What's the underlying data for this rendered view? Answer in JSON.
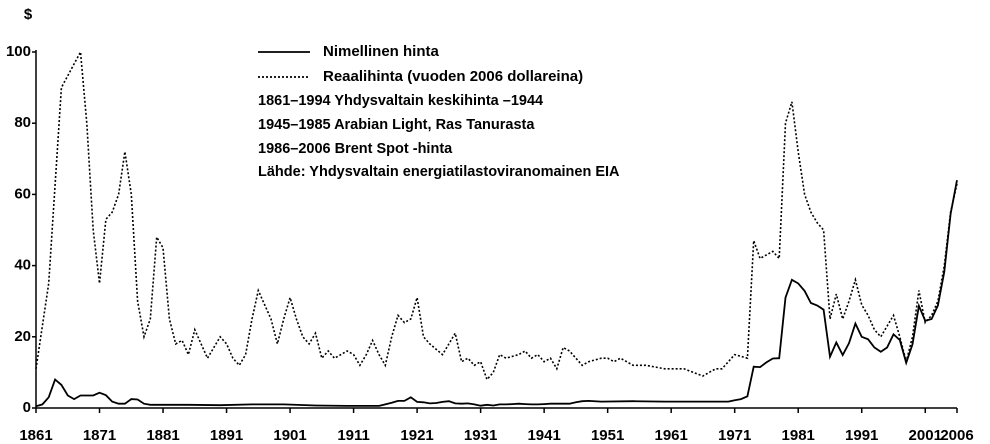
{
  "chart_data": {
    "type": "line",
    "ylabel": "$",
    "xlim": [
      1861,
      2006
    ],
    "ylim": [
      0,
      100
    ],
    "xticks": [
      1861,
      1871,
      1881,
      1891,
      1901,
      1911,
      1921,
      1931,
      1941,
      1951,
      1961,
      1971,
      1981,
      1991,
      2001,
      2006
    ],
    "yticks": [
      0,
      20,
      40,
      60,
      80,
      100
    ],
    "grid": false,
    "notes": [
      "1861–1994 Yhdysvaltain keskihinta –1944",
      "1945–1985 Arabian Light, Ras Tanurasta",
      "1986–2006 Brent Spot -hinta",
      "Lähde: Yhdysvaltain energiatilastoviranomainen EIA"
    ],
    "series": [
      {
        "name": "Nimellinen hinta",
        "color": "#000000",
        "dash": "solid",
        "x": [
          1861,
          1862,
          1863,
          1864,
          1865,
          1866,
          1867,
          1868,
          1869,
          1870,
          1871,
          1872,
          1873,
          1874,
          1875,
          1876,
          1877,
          1878,
          1879,
          1880,
          1885,
          1890,
          1895,
          1900,
          1905,
          1910,
          1915,
          1917,
          1918,
          1919,
          1920,
          1921,
          1922,
          1923,
          1924,
          1925,
          1926,
          1927,
          1928,
          1929,
          1930,
          1931,
          1932,
          1933,
          1934,
          1935,
          1936,
          1937,
          1938,
          1939,
          1940,
          1941,
          1942,
          1945,
          1946,
          1947,
          1948,
          1950,
          1955,
          1960,
          1965,
          1970,
          1971,
          1972,
          1973,
          1974,
          1975,
          1976,
          1977,
          1978,
          1979,
          1980,
          1981,
          1982,
          1983,
          1984,
          1985,
          1986,
          1987,
          1988,
          1989,
          1990,
          1991,
          1992,
          1993,
          1994,
          1995,
          1996,
          1997,
          1998,
          1999,
          2000,
          2001,
          2002,
          2003,
          2004,
          2005,
          2006
        ],
        "values": [
          0.5,
          1,
          3,
          8,
          6.5,
          3.5,
          2.5,
          3.5,
          3.5,
          3.5,
          4.3,
          3.6,
          1.8,
          1.2,
          1.2,
          2.5,
          2.4,
          1.2,
          0.9,
          0.9,
          0.9,
          0.8,
          1,
          1,
          0.7,
          0.6,
          0.6,
          1.5,
          2,
          2,
          3,
          1.7,
          1.6,
          1.3,
          1.4,
          1.7,
          1.9,
          1.3,
          1.2,
          1.3,
          1,
          0.65,
          0.9,
          0.7,
          1,
          1,
          1.1,
          1.2,
          1.1,
          1,
          1,
          1.1,
          1.2,
          1.2,
          1.6,
          1.9,
          2,
          1.8,
          1.9,
          1.8,
          1.8,
          1.8,
          2.2,
          2.5,
          3.3,
          11.6,
          11.5,
          12.8,
          13.9,
          14,
          31,
          36,
          35,
          32.9,
          29.5,
          28.8,
          27.6,
          14.4,
          18.4,
          14.9,
          18.2,
          23.7,
          20,
          19.3,
          17,
          15.8,
          17,
          20.7,
          19.1,
          12.7,
          17.9,
          28.7,
          24.5,
          25,
          28.8,
          38.3,
          54.5,
          64
        ]
      },
      {
        "name": "Reaalihinta (vuoden 2006 dollareina)",
        "color": "#000000",
        "dash": "dotted",
        "x": [
          1861,
          1863,
          1865,
          1868,
          1869,
          1870,
          1871,
          1872,
          1873,
          1874,
          1875,
          1876,
          1877,
          1878,
          1879,
          1880,
          1881,
          1882,
          1883,
          1884,
          1885,
          1886,
          1887,
          1888,
          1890,
          1891,
          1892,
          1893,
          1894,
          1895,
          1896,
          1898,
          1899,
          1900,
          1901,
          1902,
          1903,
          1904,
          1905,
          1906,
          1907,
          1908,
          1910,
          1911,
          1912,
          1913,
          1914,
          1915,
          1916,
          1917,
          1918,
          1919,
          1920,
          1921,
          1922,
          1923,
          1925,
          1926,
          1927,
          1928,
          1929,
          1930,
          1931,
          1932,
          1933,
          1934,
          1935,
          1937,
          1938,
          1939,
          1940,
          1941,
          1942,
          1943,
          1944,
          1945,
          1946,
          1947,
          1948,
          1950,
          1951,
          1952,
          1953,
          1954,
          1955,
          1957,
          1960,
          1963,
          1966,
          1968,
          1969,
          1971,
          1973,
          1974,
          1975,
          1976,
          1977,
          1978,
          1979,
          1980,
          1981,
          1982,
          1983,
          1984,
          1985,
          1986,
          1987,
          1988,
          1989,
          1990,
          1991,
          1992,
          1993,
          1994,
          1995,
          1996,
          1997,
          1998,
          1999,
          2000,
          2001,
          2002,
          2003,
          2004,
          2005,
          2006
        ],
        "values": [
          11,
          35,
          90,
          100,
          80,
          50,
          35,
          53,
          55,
          60,
          72,
          60,
          30,
          20,
          25,
          48,
          45,
          25,
          18,
          19,
          15,
          22,
          18,
          14,
          20,
          18,
          14,
          12,
          15,
          25,
          33,
          25,
          18,
          25,
          31,
          25,
          20,
          18,
          21,
          14,
          16,
          14,
          16,
          15,
          12,
          15,
          19,
          15,
          12,
          20,
          26,
          24,
          25,
          31,
          20,
          18,
          15,
          18,
          21,
          13,
          14,
          12,
          13,
          8,
          10,
          15,
          14,
          15,
          16,
          14,
          15,
          13,
          14,
          11,
          17,
          16,
          14,
          12,
          13,
          14,
          14,
          13,
          14,
          13,
          12,
          12,
          11,
          11,
          9,
          11,
          11,
          15,
          14,
          47,
          42,
          43,
          44,
          42,
          80,
          86,
          72,
          60,
          55,
          52,
          50,
          25,
          32,
          25,
          30,
          36,
          29,
          26,
          22,
          20,
          23,
          26,
          20,
          13,
          20,
          33,
          24,
          26,
          30,
          40,
          55,
          63
        ]
      }
    ]
  }
}
